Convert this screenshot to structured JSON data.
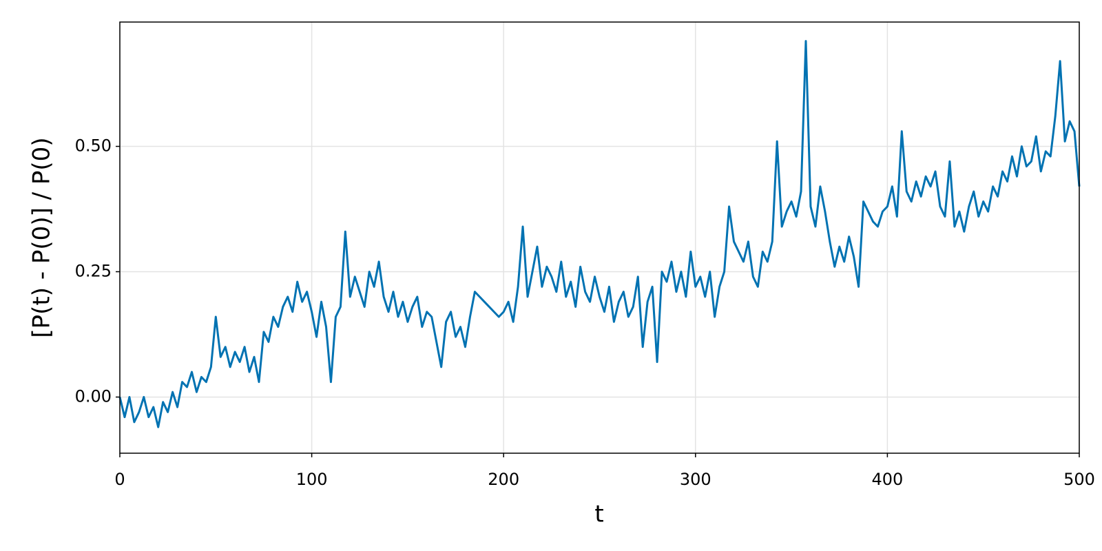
{
  "chart_data": {
    "type": "line",
    "xlabel": "t",
    "ylabel": "[P(t) - P(0)] / P(0)",
    "xlim": [
      0,
      500
    ],
    "xticks": [
      0,
      100,
      200,
      300,
      400,
      500
    ],
    "ylim": [
      -0.112,
      0.748
    ],
    "yticks": [
      {
        "value": 0,
        "label": "0.00"
      },
      {
        "value": 0.25,
        "label": "0.25"
      },
      {
        "value": 0.5,
        "label": "0.50"
      }
    ],
    "grid": true,
    "series": [
      {
        "color": "#0072b2",
        "x": [
          0,
          2.5,
          5,
          7.5,
          10,
          12.5,
          15,
          17.5,
          20,
          22.5,
          25,
          27.5,
          30,
          32.5,
          35,
          37.5,
          40,
          42.5,
          45,
          47.5,
          50,
          52.5,
          55,
          57.5,
          60,
          62.5,
          65,
          67.5,
          70,
          72.5,
          75,
          77.5,
          80,
          82.5,
          85,
          87.5,
          90,
          92.5,
          95,
          97.5,
          100,
          102.5,
          105,
          107.5,
          110,
          112.5,
          115,
          117.5,
          120,
          122.5,
          125,
          127.5,
          130,
          132.5,
          135,
          137.5,
          140,
          142.5,
          145,
          147.5,
          150,
          152.5,
          155,
          157.5,
          160,
          162.5,
          165,
          167.5,
          170,
          172.5,
          175,
          177.5,
          180,
          182.5,
          185,
          187.5,
          190,
          192.5,
          195,
          197.5,
          200,
          202.5,
          205,
          207.5,
          210,
          212.5,
          215,
          217.5,
          220,
          222.5,
          225,
          227.5,
          230,
          232.5,
          235,
          237.5,
          240,
          242.5,
          245,
          247.5,
          250,
          252.5,
          255,
          257.5,
          260,
          262.5,
          265,
          267.5,
          270,
          272.5,
          275,
          277.5,
          280,
          282.5,
          285,
          287.5,
          290,
          292.5,
          295,
          297.5,
          300,
          302.5,
          305,
          307.5,
          310,
          312.5,
          315,
          317.5,
          320,
          322.5,
          325,
          327.5,
          330,
          332.5,
          335,
          337.5,
          340,
          342.5,
          345,
          347.5,
          350,
          352.5,
          355,
          357.5,
          360,
          362.5,
          365,
          367.5,
          370,
          372.5,
          375,
          377.5,
          380,
          382.5,
          385,
          387.5,
          390,
          392.5,
          395,
          397.5,
          400,
          402.5,
          405,
          407.5,
          410,
          412.5,
          415,
          417.5,
          420,
          422.5,
          425,
          427.5,
          430,
          432.5,
          435,
          437.5,
          440,
          442.5,
          445,
          447.5,
          450,
          452.5,
          455,
          457.5,
          460,
          462.5,
          465,
          467.5,
          470,
          472.5,
          475,
          477.5,
          480,
          482.5,
          485,
          487.5,
          490,
          492.5,
          495,
          497.5,
          500
        ],
        "values": [
          0,
          -0.04,
          0.0,
          -0.05,
          -0.03,
          0.0,
          -0.04,
          -0.02,
          -0.06,
          -0.01,
          -0.03,
          0.01,
          -0.02,
          0.03,
          0.02,
          0.05,
          0.01,
          0.04,
          0.03,
          0.06,
          0.16,
          0.08,
          0.1,
          0.06,
          0.09,
          0.07,
          0.1,
          0.05,
          0.08,
          0.03,
          0.13,
          0.11,
          0.16,
          0.14,
          0.18,
          0.2,
          0.17,
          0.23,
          0.19,
          0.21,
          0.17,
          0.12,
          0.19,
          0.14,
          0.03,
          0.16,
          0.18,
          0.33,
          0.2,
          0.24,
          0.21,
          0.18,
          0.25,
          0.22,
          0.27,
          0.2,
          0.17,
          0.21,
          0.16,
          0.19,
          0.15,
          0.18,
          0.2,
          0.14,
          0.17,
          0.16,
          0.11,
          0.06,
          0.15,
          0.17,
          0.12,
          0.14,
          0.1,
          0.16,
          0.21,
          0.2,
          0.19,
          0.18,
          0.17,
          0.16,
          0.17,
          0.19,
          0.15,
          0.22,
          0.34,
          0.2,
          0.25,
          0.3,
          0.22,
          0.26,
          0.24,
          0.21,
          0.27,
          0.2,
          0.23,
          0.18,
          0.26,
          0.21,
          0.19,
          0.24,
          0.2,
          0.17,
          0.22,
          0.15,
          0.19,
          0.21,
          0.16,
          0.18,
          0.24,
          0.1,
          0.19,
          0.22,
          0.07,
          0.25,
          0.23,
          0.27,
          0.21,
          0.25,
          0.2,
          0.29,
          0.22,
          0.24,
          0.2,
          0.25,
          0.16,
          0.22,
          0.25,
          0.38,
          0.31,
          0.29,
          0.27,
          0.31,
          0.24,
          0.22,
          0.29,
          0.27,
          0.31,
          0.51,
          0.34,
          0.37,
          0.39,
          0.36,
          0.41,
          0.71,
          0.38,
          0.34,
          0.42,
          0.37,
          0.31,
          0.26,
          0.3,
          0.27,
          0.32,
          0.28,
          0.22,
          0.39,
          0.37,
          0.35,
          0.34,
          0.37,
          0.38,
          0.42,
          0.36,
          0.53,
          0.41,
          0.39,
          0.43,
          0.4,
          0.44,
          0.42,
          0.45,
          0.38,
          0.36,
          0.47,
          0.34,
          0.37,
          0.33,
          0.38,
          0.41,
          0.36,
          0.39,
          0.37,
          0.42,
          0.4,
          0.45,
          0.43,
          0.48,
          0.44,
          0.5,
          0.46,
          0.47,
          0.52,
          0.45,
          0.49,
          0.48,
          0.56,
          0.67,
          0.51,
          0.55,
          0.53,
          0.42
        ]
      }
    ]
  }
}
